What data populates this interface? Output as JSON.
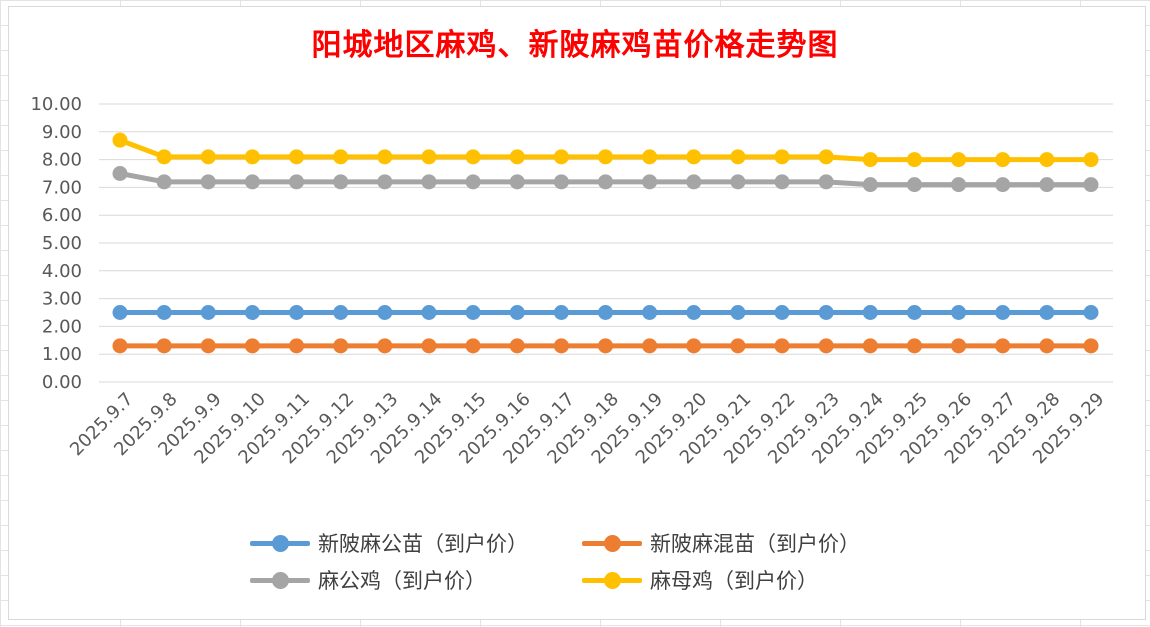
{
  "chart_data": {
    "type": "line",
    "title": "阳城地区麻鸡、新陂麻鸡苗价格走势图",
    "categories": [
      "2025.9.7",
      "2025.9.8",
      "2025.9.9",
      "2025.9.10",
      "2025.9.11",
      "2025.9.12",
      "2025.9.13",
      "2025.9.14",
      "2025.9.15",
      "2025.9.16",
      "2025.9.17",
      "2025.9.18",
      "2025.9.19",
      "2025.9.20",
      "2025.9.21",
      "2025.9.22",
      "2025.9.23",
      "2025.9.24",
      "2025.9.25",
      "2025.9.26",
      "2025.9.27",
      "2025.9.28",
      "2025.9.29"
    ],
    "ylim": [
      0,
      10
    ],
    "y_ticks": [
      "0.00",
      "1.00",
      "2.00",
      "3.00",
      "4.00",
      "5.00",
      "6.00",
      "7.00",
      "8.00",
      "9.00",
      "10.00"
    ],
    "grid": true,
    "legend_position": "bottom",
    "series": [
      {
        "name": "新陂麻公苗（到户价）",
        "color": "#5b9bd5",
        "values": [
          2.5,
          2.5,
          2.5,
          2.5,
          2.5,
          2.5,
          2.5,
          2.5,
          2.5,
          2.5,
          2.5,
          2.5,
          2.5,
          2.5,
          2.5,
          2.5,
          2.5,
          2.5,
          2.5,
          2.5,
          2.5,
          2.5,
          2.5
        ]
      },
      {
        "name": "新陂麻混苗（到户价）",
        "color": "#ed7d31",
        "values": [
          1.3,
          1.3,
          1.3,
          1.3,
          1.3,
          1.3,
          1.3,
          1.3,
          1.3,
          1.3,
          1.3,
          1.3,
          1.3,
          1.3,
          1.3,
          1.3,
          1.3,
          1.3,
          1.3,
          1.3,
          1.3,
          1.3,
          1.3
        ]
      },
      {
        "name": "麻公鸡（到户价）",
        "color": "#a5a5a5",
        "values": [
          7.5,
          7.2,
          7.2,
          7.2,
          7.2,
          7.2,
          7.2,
          7.2,
          7.2,
          7.2,
          7.2,
          7.2,
          7.2,
          7.2,
          7.2,
          7.2,
          7.2,
          7.1,
          7.1,
          7.1,
          7.1,
          7.1,
          7.1
        ]
      },
      {
        "name": "麻母鸡（到户价）",
        "color": "#ffc000",
        "values": [
          8.7,
          8.1,
          8.1,
          8.1,
          8.1,
          8.1,
          8.1,
          8.1,
          8.1,
          8.1,
          8.1,
          8.1,
          8.1,
          8.1,
          8.1,
          8.1,
          8.1,
          8.0,
          8.0,
          8.0,
          8.0,
          8.0,
          8.0
        ]
      }
    ]
  }
}
